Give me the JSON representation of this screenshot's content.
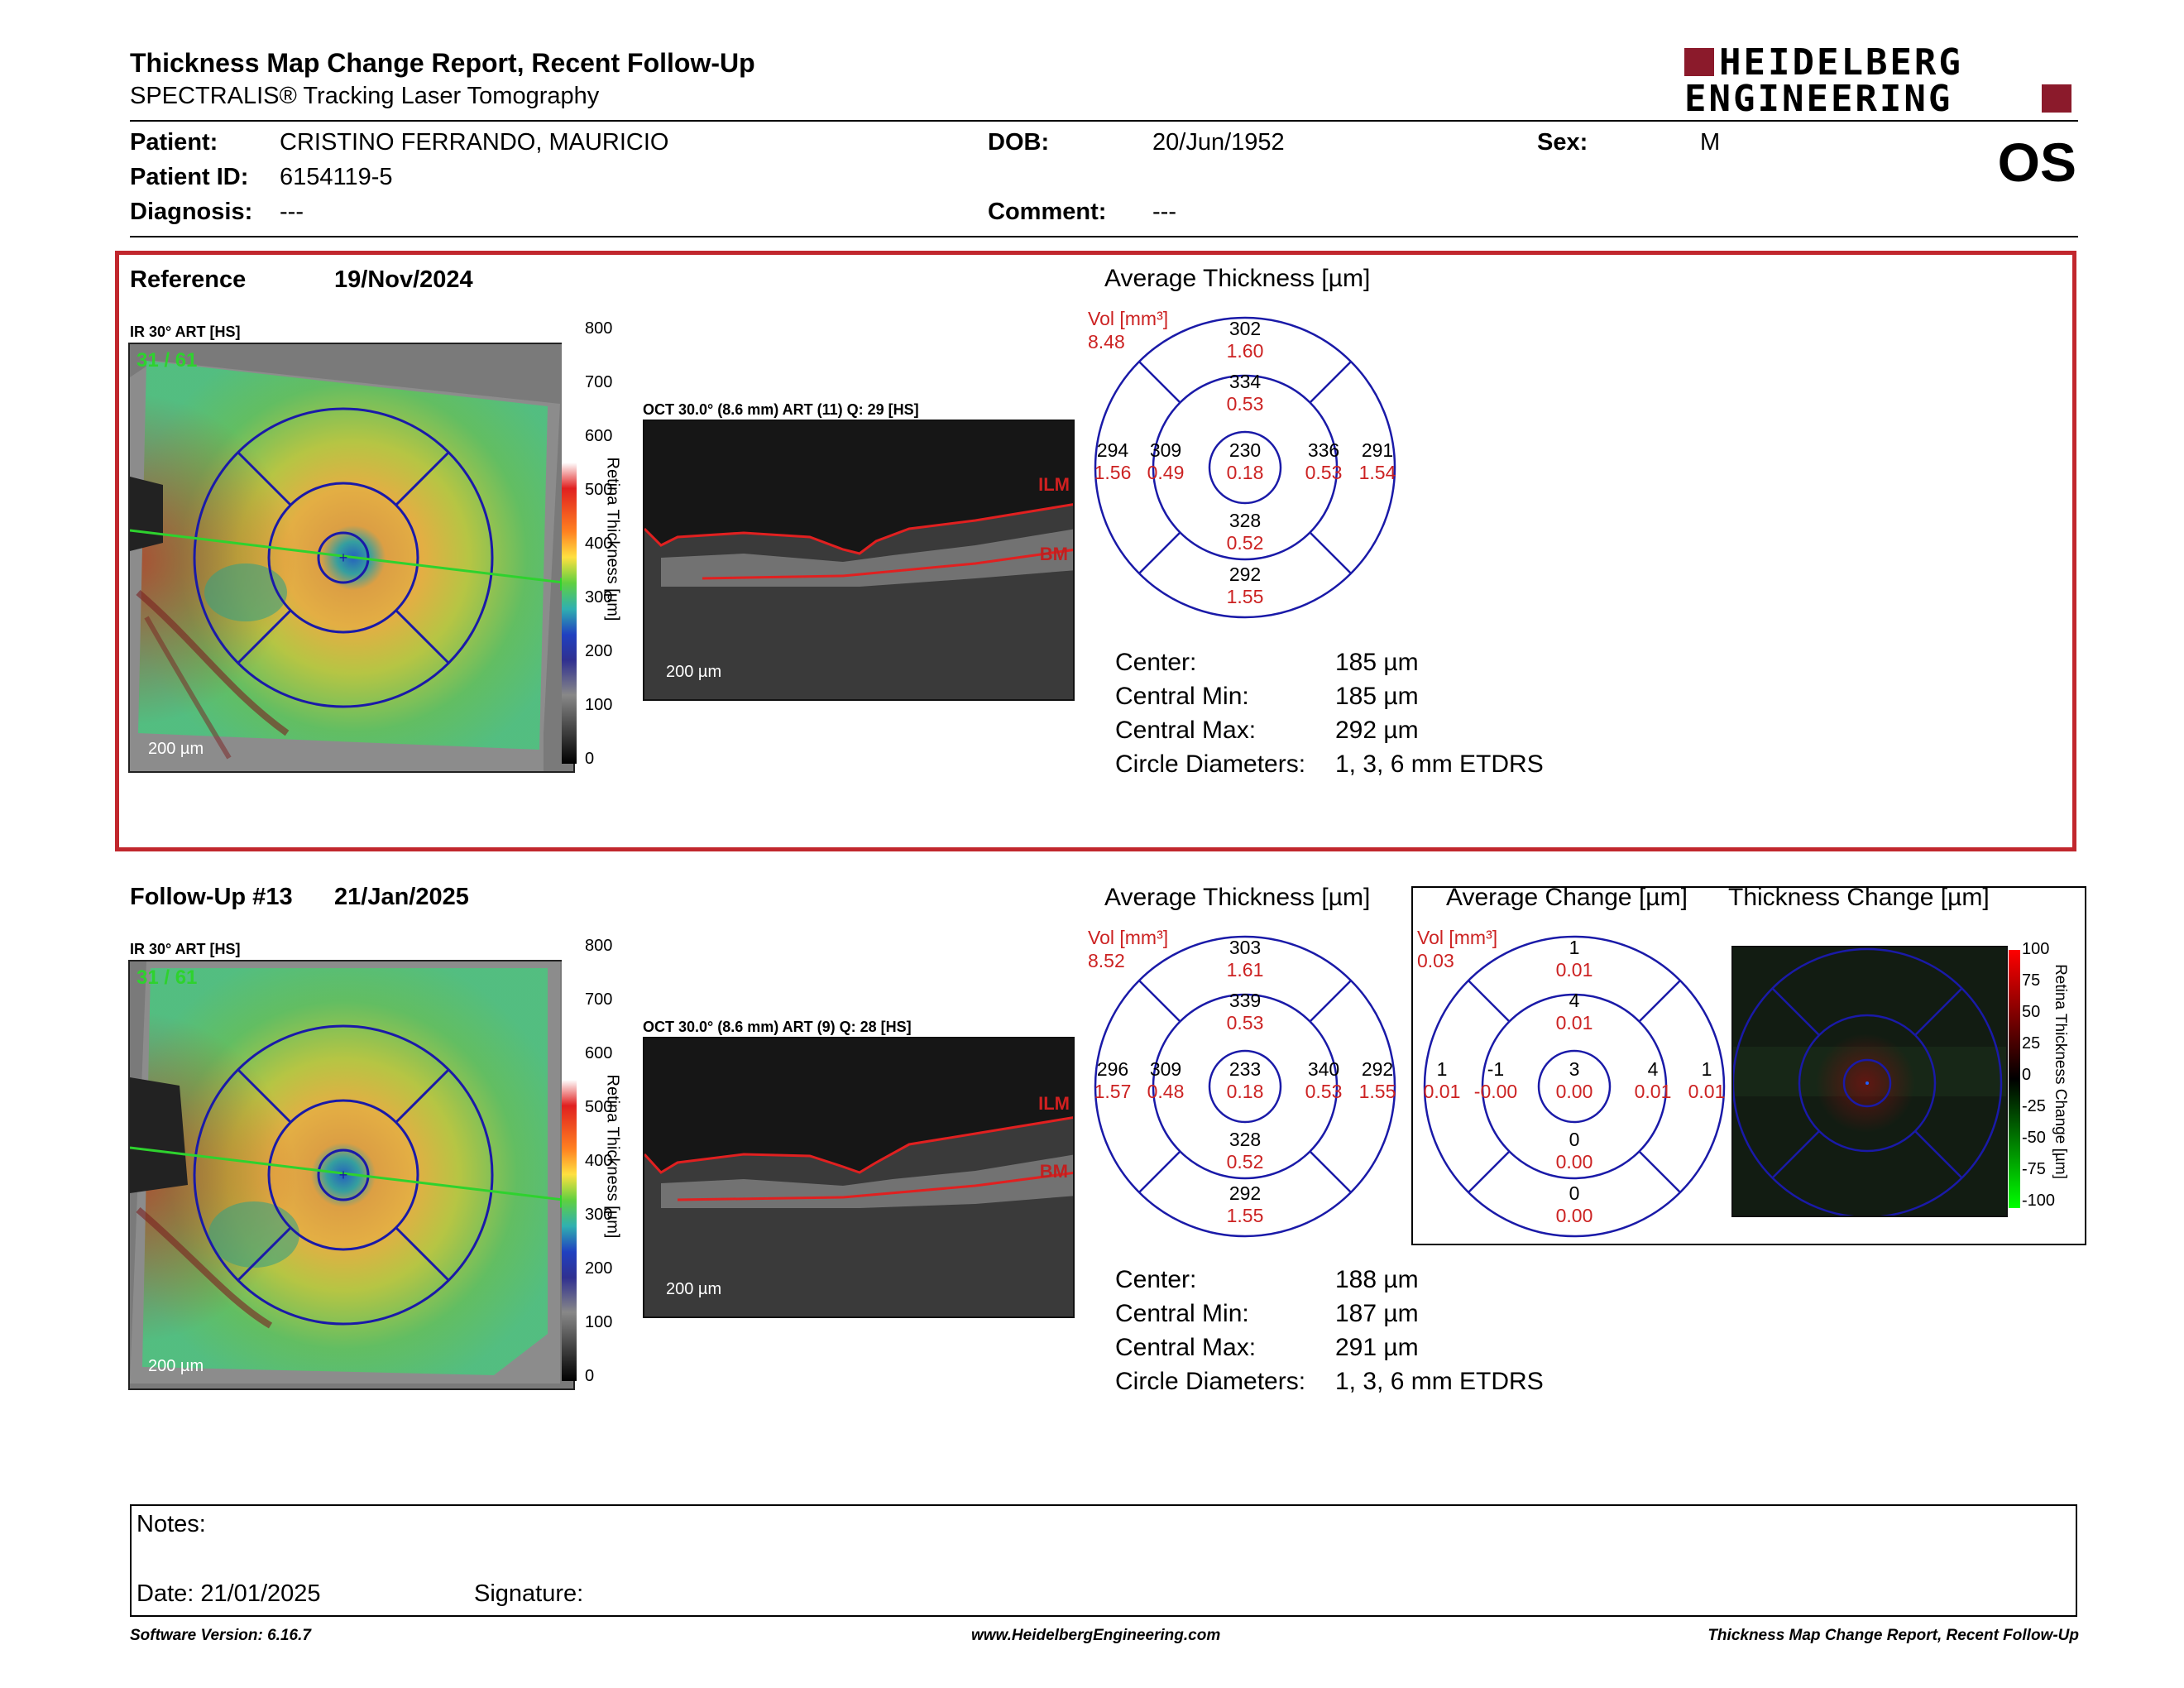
{
  "report": {
    "title": "Thickness Map Change Report, Recent Follow-Up",
    "subtitle": "SPECTRALIS® Tracking Laser Tomography",
    "logo_line1": "HEIDELBERG",
    "logo_line2": "ENGINEERING",
    "eye": "OS"
  },
  "patient": {
    "patient_label": "Patient:",
    "patient_value": "CRISTINO FERRANDO, MAURICIO",
    "id_label": "Patient ID:",
    "id_value": "6154119-5",
    "diagnosis_label": "Diagnosis:",
    "diagnosis_value": "---",
    "dob_label": "DOB:",
    "dob_value": "20/Jun/1952",
    "comment_label": "Comment:",
    "comment_value": "---",
    "sex_label": "Sex:",
    "sex_value": "M"
  },
  "colors": {
    "accent_red": "#c1272d",
    "grid_blue": "#1a1aa8",
    "vol_red": "#cc2222"
  },
  "reference": {
    "title": "Reference",
    "date": "19/Nov/2024",
    "ir_label": "IR 30° ART [HS]",
    "ir_counter": "31 / 61",
    "oct_label": "OCT 30.0° (8.6 mm) ART (11) Q: 29 [HS]",
    "ilm": "ILM",
    "bm": "BM",
    "scale_fundus": "200 µm",
    "scale_oct": "200 µm",
    "avg_title": "Average Thickness [µm]",
    "vol_label": "Vol [mm³]",
    "vol_value": "8.48",
    "grid": {
      "outer_sup": [
        "302",
        "1.60"
      ],
      "inner_sup": [
        "334",
        "0.53"
      ],
      "outer_temp": [
        "294",
        "1.56"
      ],
      "inner_temp": [
        "309",
        "0.49"
      ],
      "center": [
        "230",
        "0.18"
      ],
      "inner_nas": [
        "336",
        "0.53"
      ],
      "outer_nas": [
        "291",
        "1.54"
      ],
      "inner_inf": [
        "328",
        "0.52"
      ],
      "outer_inf": [
        "292",
        "1.55"
      ]
    },
    "stats": {
      "center_label": "Center:",
      "center_value": "185 µm",
      "min_label": "Central Min:",
      "min_value": "185 µm",
      "max_label": "Central Max:",
      "max_value": "292 µm",
      "diam_label": "Circle Diameters:",
      "diam_value": "1, 3, 6 mm ETDRS"
    }
  },
  "followup": {
    "title": "Follow-Up #13",
    "date": "21/Jan/2025",
    "ir_label": "IR 30° ART [HS]",
    "ir_counter": "31 / 61",
    "oct_label": "OCT 30.0° (8.6 mm) ART (9) Q: 28 [HS]",
    "ilm": "ILM",
    "bm": "BM",
    "scale_fundus": "200 µm",
    "scale_oct": "200 µm",
    "avg_title": "Average Thickness [µm]",
    "vol_label": "Vol [mm³]",
    "vol_value": "8.52",
    "grid": {
      "outer_sup": [
        "303",
        "1.61"
      ],
      "inner_sup": [
        "339",
        "0.53"
      ],
      "outer_temp": [
        "296",
        "1.57"
      ],
      "inner_temp": [
        "309",
        "0.48"
      ],
      "center": [
        "233",
        "0.18"
      ],
      "inner_nas": [
        "340",
        "0.53"
      ],
      "outer_nas": [
        "292",
        "1.55"
      ],
      "inner_inf": [
        "328",
        "0.52"
      ],
      "outer_inf": [
        "292",
        "1.55"
      ]
    },
    "stats": {
      "center_label": "Center:",
      "center_value": "188 µm",
      "min_label": "Central Min:",
      "min_value": "187 µm",
      "max_label": "Central Max:",
      "max_value": "291 µm",
      "diam_label": "Circle Diameters:",
      "diam_value": "1, 3, 6 mm ETDRS"
    },
    "change_title": "Average Change [µm]",
    "change_vol_label": "Vol [mm³]",
    "change_vol_value": "0.03",
    "change_grid": {
      "outer_sup": [
        "1",
        "0.01"
      ],
      "inner_sup": [
        "4",
        "0.01"
      ],
      "outer_temp": [
        "1",
        "0.01"
      ],
      "inner_temp": [
        "-1",
        "-0.00"
      ],
      "center": [
        "3",
        "0.00"
      ],
      "inner_nas": [
        "4",
        "0.01"
      ],
      "outer_nas": [
        "1",
        "0.01"
      ],
      "inner_inf": [
        "0",
        "0.00"
      ],
      "outer_inf": [
        "0",
        "0.00"
      ]
    },
    "thickness_change_title": "Thickness Change [µm]",
    "change_bar_label": "Retina Thickness Change [µm]",
    "change_ticks": [
      "100",
      "75",
      "50",
      "25",
      "0",
      "-25",
      "-50",
      "-75",
      "-100"
    ]
  },
  "colorbar": {
    "label": "Retina Thickness [µm]",
    "ticks": [
      "800",
      "700",
      "600",
      "500",
      "400",
      "300",
      "200",
      "100",
      "0"
    ]
  },
  "notes": {
    "notes_label": "Notes:",
    "date_label": "Date: 21/01/2025",
    "signature_label": "Signature:"
  },
  "footer": {
    "version": "Software Version: 6.16.7",
    "url": "www.HeidelbergEngineering.com",
    "report_name": "Thickness Map Change Report, Recent Follow-Up"
  }
}
